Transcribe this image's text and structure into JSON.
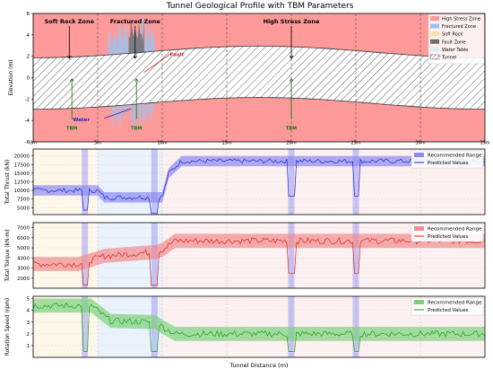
{
  "title": "Tunnel Geological Profile with TBM Parameters",
  "colors": {
    "high_stress": "#ff9a9a",
    "fractured": "#9ec1ea",
    "soft_rock": "#f7dfa0",
    "fault": "#6d6d6d",
    "water": "#dcecf6",
    "thrust": "#2020d8",
    "torque": "#e02020",
    "speed": "#18a018",
    "range_thrust": "#8c8cf0",
    "range_torque": "#f08c8c",
    "range_speed": "#7cd07c",
    "tbm_green": "#0a7a0a",
    "fault_arrow": "#d02020",
    "water_arrow": "#2020c8"
  },
  "chart_data": [
    {
      "type": "area",
      "panel": "geology",
      "ylabel": "Elevation (m)",
      "xlim": [
        0,
        35
      ],
      "ylim": [
        -6,
        6
      ],
      "x_ticks": [
        0,
        5,
        10,
        15,
        20,
        25,
        30,
        35
      ],
      "x_tick_labels": [
        "0m",
        "5m",
        "10m",
        "15m",
        "20m",
        "25m",
        "30m",
        "35m"
      ],
      "y_ticks": [
        -6,
        -4,
        -2,
        0,
        2,
        4,
        6
      ],
      "legend": {
        "position": "top-right",
        "entries": [
          "High Stress Zone",
          "Fractured Zone",
          "Soft Rock",
          "Fault Zone",
          "Water Table",
          "Tunnel"
        ]
      },
      "zones": [
        {
          "name": "Soft Rock Zone",
          "start": 0,
          "end": 5
        },
        {
          "name": "Fractured Zone",
          "start": 5,
          "end": 10
        },
        {
          "name": "High Stress Zone",
          "start": 10,
          "end": 35
        }
      ],
      "tunnel": {
        "half_height": 2.4,
        "amplitude": 0.55,
        "period": 35
      },
      "annotations": [
        {
          "text": "Fault",
          "x": 10.6,
          "y": 2.5
        },
        {
          "text": "Water",
          "x": 3.5,
          "y": -3.4
        },
        {
          "text": "TBM",
          "x": 3,
          "y": -4.2
        },
        {
          "text": "TBM",
          "x": 8,
          "y": -4.2
        },
        {
          "text": "TBM",
          "x": 20,
          "y": -4.2
        }
      ]
    },
    {
      "type": "line",
      "panel": "thrust",
      "ylabel": "Total Thrust (kN)",
      "xlim": [
        0,
        35
      ],
      "ylim": [
        3000,
        22000
      ],
      "y_ticks": [
        5000,
        7500,
        10000,
        12500,
        15000,
        17500,
        20000
      ],
      "y_tick_labels": [
        "5000",
        "7500",
        "10000",
        "12500",
        "15000",
        "17500",
        "20000"
      ],
      "legend": {
        "position": "top-right",
        "entries": [
          "Recommended Range",
          "Predicted Values"
        ]
      },
      "x": [
        0,
        5,
        5.5,
        9.5,
        10,
        10.5,
        11.5,
        35
      ],
      "recommended_center": [
        10000,
        10000,
        8000,
        8000,
        8000,
        15000,
        18500,
        18500
      ],
      "recommended_half_width": 1500,
      "drops": [
        {
          "x": 4,
          "value": 4300
        },
        {
          "x": 9.4,
          "value": 3300
        },
        {
          "x": 20,
          "value": 8400
        },
        {
          "x": 25,
          "value": 8400
        }
      ]
    },
    {
      "type": "line",
      "panel": "torque",
      "ylabel": "Total Torque (kN·m)",
      "xlim": [
        0,
        35
      ],
      "ylim": [
        1000,
        7500
      ],
      "y_ticks": [
        2000,
        3000,
        4000,
        5000,
        6000,
        7000
      ],
      "y_tick_labels": [
        "2000",
        "3000",
        "4000",
        "5000",
        "6000",
        "7000"
      ],
      "legend": {
        "position": "top-right",
        "entries": [
          "Recommended Range",
          "Predicted Values"
        ]
      },
      "x": [
        0,
        3.5,
        5.5,
        9.5,
        10,
        11,
        35
      ],
      "recommended_center": [
        3400,
        3400,
        4200,
        4600,
        4800,
        5700,
        5700
      ],
      "recommended_half_width": 700,
      "drops": [
        {
          "x": 4,
          "value": 1300
        },
        {
          "x": 9.4,
          "value": 1300
        },
        {
          "x": 20,
          "value": 2500
        },
        {
          "x": 25,
          "value": 2500
        }
      ]
    },
    {
      "type": "line",
      "panel": "speed",
      "ylabel": "Rotation Speed (rpm)",
      "xlabel": "Tunnel Distance (m)",
      "xlim": [
        0,
        35
      ],
      "ylim": [
        0,
        5.2
      ],
      "y_ticks": [
        1,
        2,
        3,
        4,
        5
      ],
      "y_tick_labels": [
        "1",
        "2",
        "3",
        "4",
        "5"
      ],
      "legend": {
        "position": "top-right",
        "entries": [
          "Recommended Range",
          "Predicted Values"
        ]
      },
      "x": [
        0,
        4.5,
        6,
        9.5,
        10,
        11,
        35
      ],
      "recommended_center": [
        4.4,
        4.4,
        3.1,
        3.0,
        2.6,
        2.0,
        2.0
      ],
      "recommended_half_width": 0.6,
      "drops": [
        {
          "x": 4,
          "value": 0.5
        },
        {
          "x": 9.4,
          "value": 0.5
        },
        {
          "x": 20,
          "value": 0.5
        },
        {
          "x": 25,
          "value": 0.5
        }
      ]
    }
  ]
}
